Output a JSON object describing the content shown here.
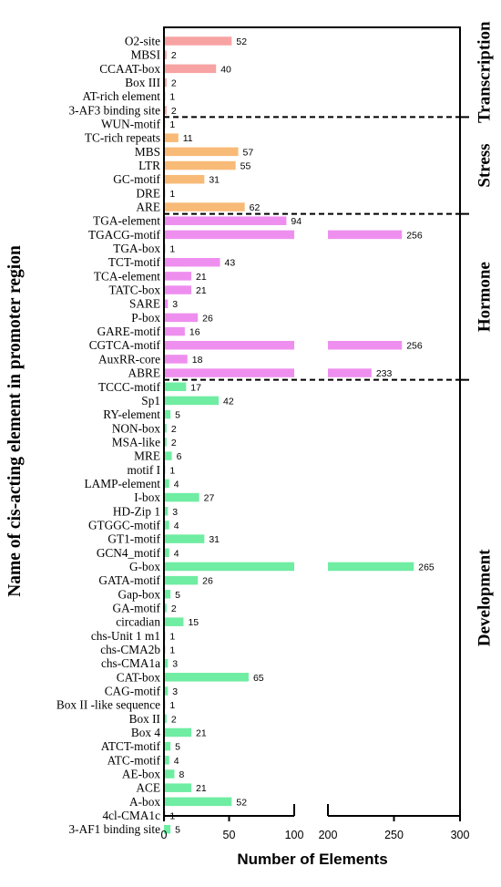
{
  "chart_data": {
    "type": "bar",
    "orientation": "horizontal",
    "xlabel": "Number of Elements",
    "ylabel": "Name of cis-acting element in promoter region",
    "axis_break": {
      "from": 100,
      "to": 200
    },
    "xticks": [
      0,
      50,
      100,
      200,
      250,
      300
    ],
    "xlim": [
      0,
      300
    ],
    "groups": [
      {
        "name": "Transcription",
        "color": "#F8A3A3",
        "categories": [
          "O2-site",
          "MBSI",
          "CCAAT-box",
          "Box III",
          "AT-rich element",
          "3-AF3 binding site"
        ],
        "values": [
          52,
          2,
          40,
          2,
          1,
          2
        ]
      },
      {
        "name": "Stress",
        "color": "#F8BA77",
        "categories": [
          "WUN-motif",
          "TC-rich repeats",
          "MBS",
          "LTR",
          "GC-motif",
          "DRE",
          "ARE"
        ],
        "values": [
          1,
          11,
          57,
          55,
          31,
          1,
          62
        ]
      },
      {
        "name": "Hormone",
        "color": "#EE8FEF",
        "categories": [
          "TGA-element",
          "TGACG-motif",
          "TGA-box",
          "TCT-motif",
          "TCA-element",
          "TATC-box",
          "SARE",
          "P-box",
          "GARE-motif",
          "CGTCA-motif",
          "AuxRR-core",
          "ABRE"
        ],
        "values": [
          94,
          256,
          1,
          43,
          21,
          21,
          3,
          26,
          16,
          256,
          18,
          233
        ]
      },
      {
        "name": "Development",
        "color": "#6FEDA2",
        "categories": [
          "TCCC-motif",
          "Sp1",
          "RY-element",
          "NON-box",
          "MSA-like",
          "MRE",
          "motif I",
          "LAMP-element",
          "I-box",
          "HD-Zip 1",
          "GTGGC-motif",
          "GT1-motif",
          "GCN4_motif",
          "G-box",
          "GATA-motif",
          "Gap-box",
          "GA-motif",
          "circadian",
          "chs-Unit 1 m1",
          "chs-CMA2b",
          "chs-CMA1a",
          "CAT-box",
          "CAG-motif",
          "Box II -like sequence",
          "Box II",
          "Box 4",
          "ATCT-motif",
          "ATC-motif",
          "AE-box",
          "ACE",
          "A-box",
          "4cl-CMA1c",
          "3-AF1 binding site"
        ],
        "values": [
          17,
          42,
          5,
          2,
          2,
          6,
          1,
          4,
          27,
          3,
          4,
          31,
          4,
          265,
          26,
          5,
          2,
          15,
          1,
          1,
          3,
          65,
          3,
          1,
          2,
          21,
          5,
          4,
          8,
          21,
          52,
          1,
          5
        ]
      }
    ]
  }
}
